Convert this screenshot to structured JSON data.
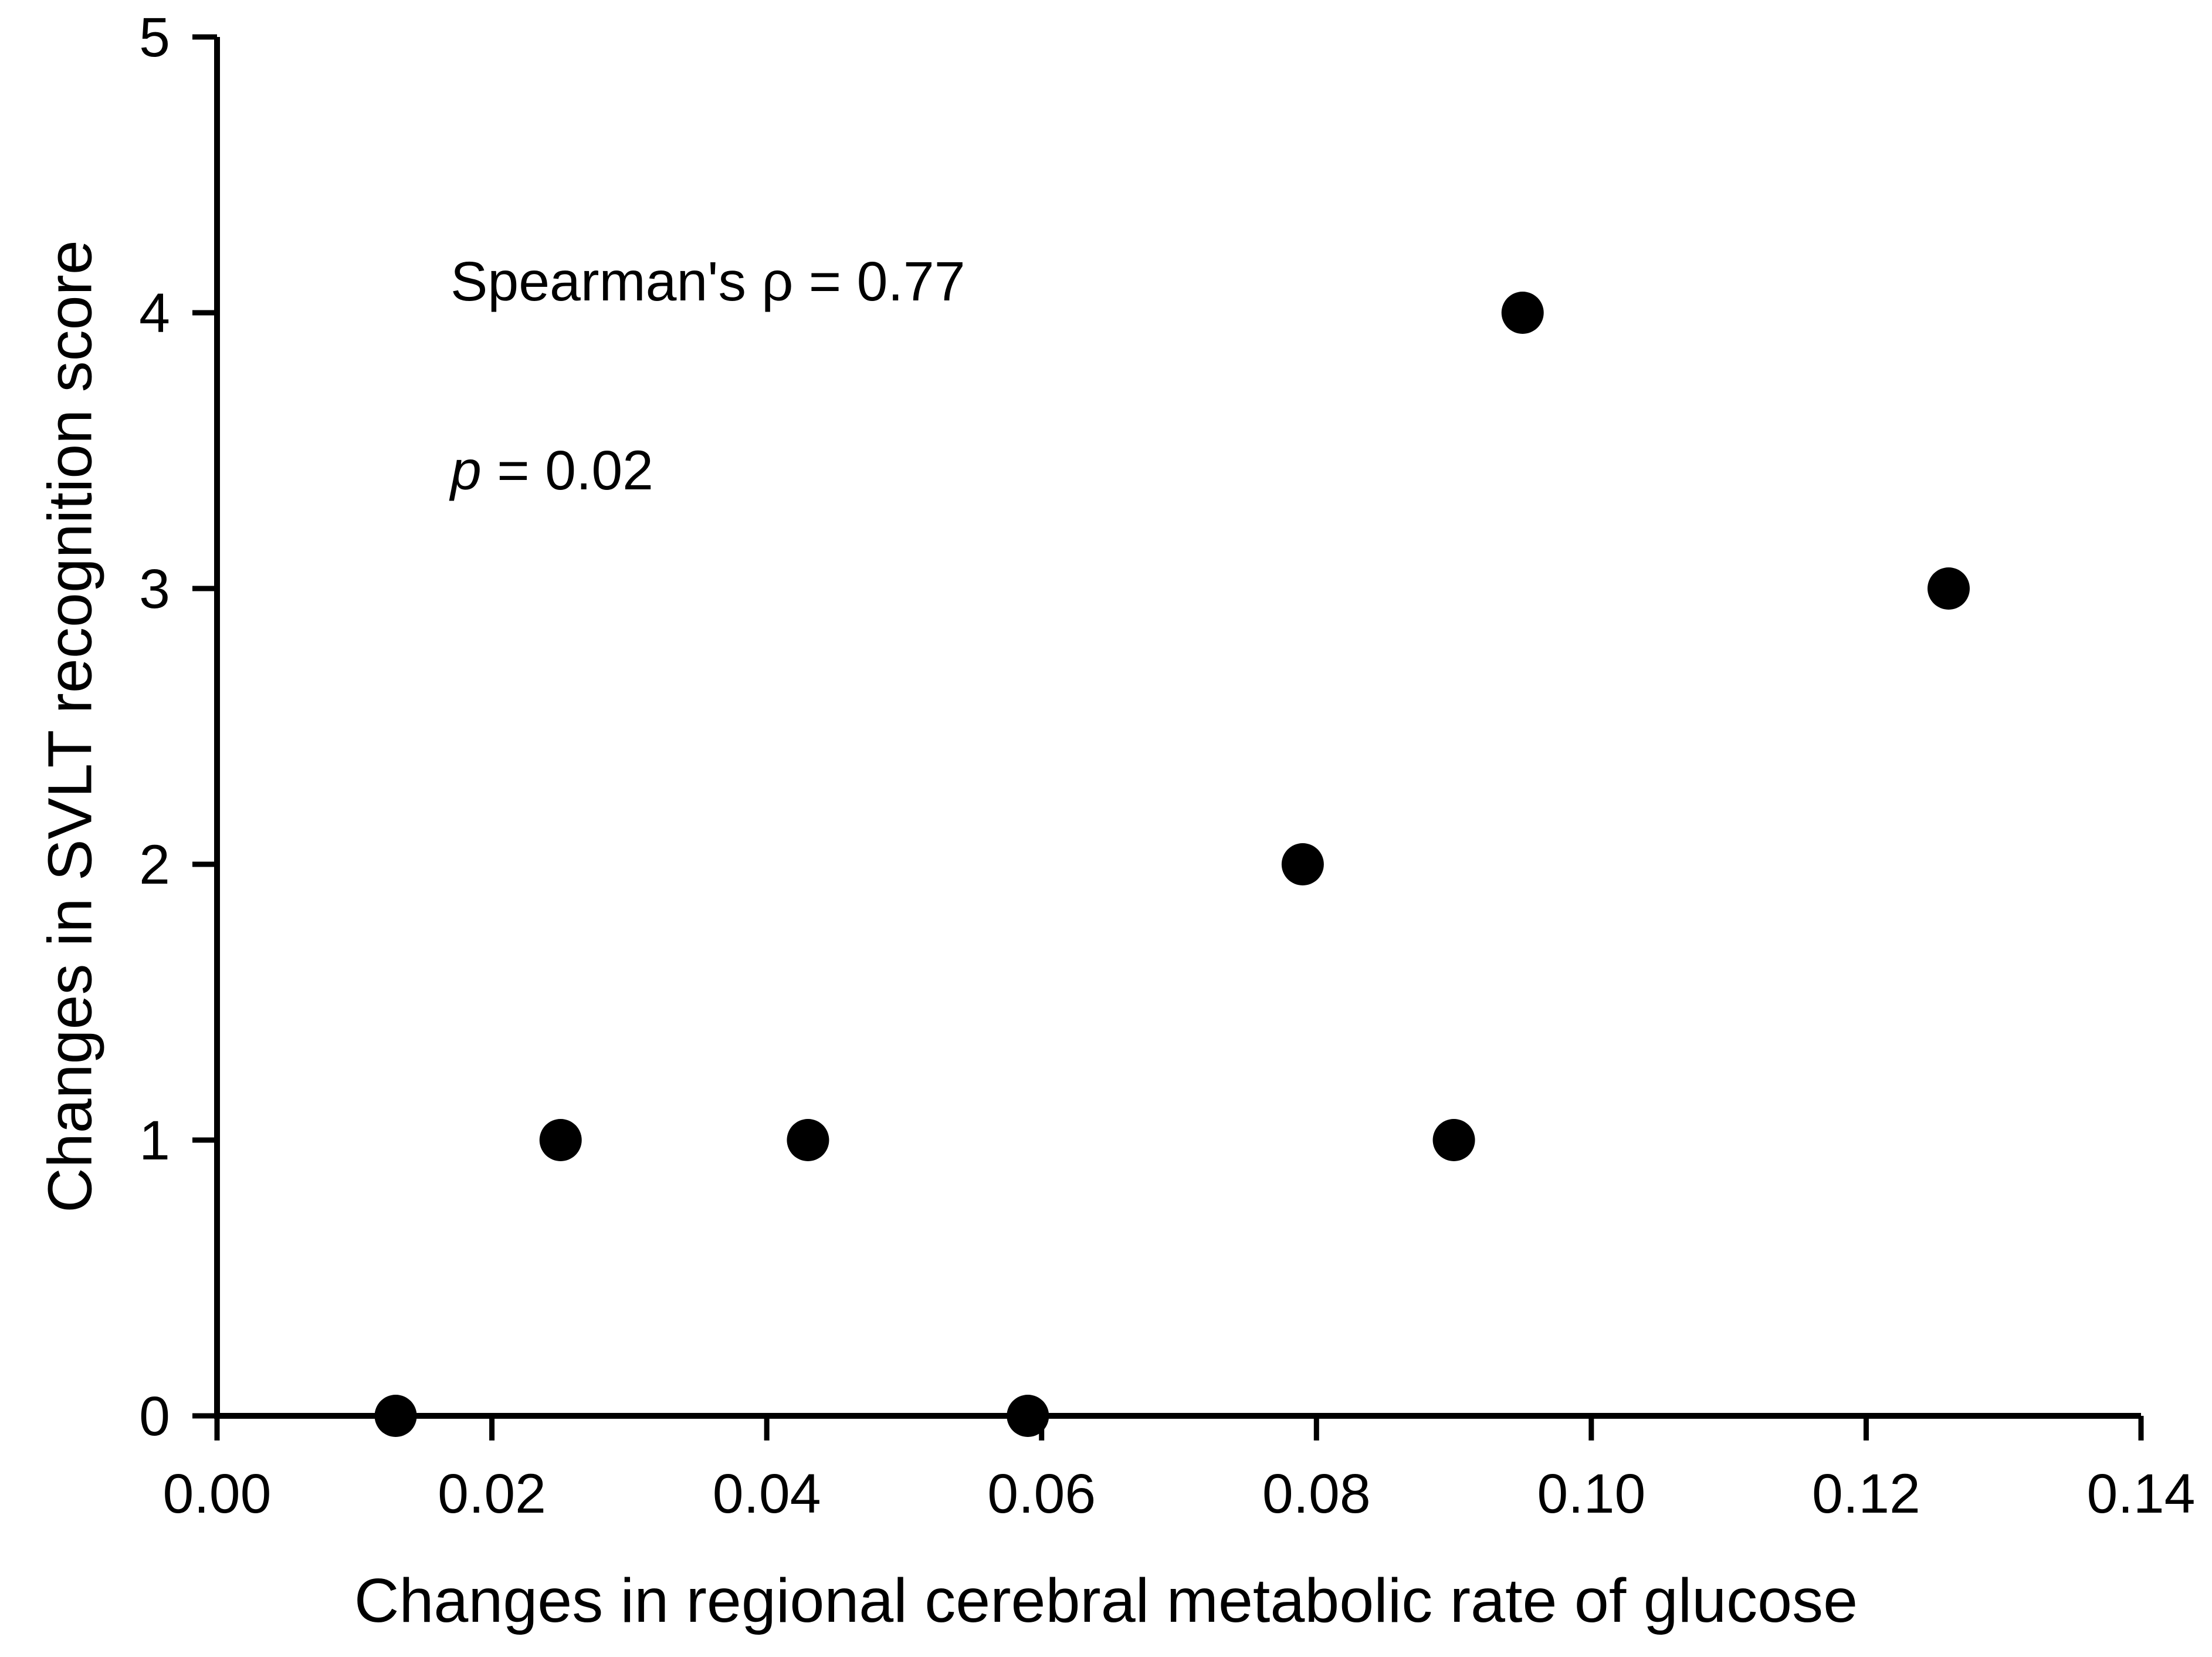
{
  "chart_data": {
    "type": "scatter",
    "title": "",
    "xlabel": "Changes in regional cerebral metabolic rate of glucose",
    "ylabel": "Changes in SVLT recognition score",
    "xlim": [
      0,
      0.14
    ],
    "ylim": [
      0,
      5
    ],
    "x_tick_labels": [
      "0.00",
      "0.02",
      "0.04",
      "0.06",
      "0.08",
      "0.10",
      "0.12",
      "0.14"
    ],
    "y_tick_labels": [
      "0",
      "1",
      "2",
      "3",
      "4",
      "5"
    ],
    "grid": false,
    "legend": false,
    "marker": "filled-circle",
    "points": [
      {
        "x": 0.013,
        "y": 0
      },
      {
        "x": 0.025,
        "y": 1
      },
      {
        "x": 0.043,
        "y": 1
      },
      {
        "x": 0.059,
        "y": 0
      },
      {
        "x": 0.079,
        "y": 2
      },
      {
        "x": 0.09,
        "y": 1
      },
      {
        "x": 0.095,
        "y": 4
      },
      {
        "x": 0.126,
        "y": 3
      }
    ],
    "annotation": {
      "line1": "Spearman's ρ = 0.77",
      "line2_var": "p",
      "line2_rest": " = 0.02"
    },
    "colors": {
      "point": "#000000",
      "axis": "#000000",
      "text": "#000000",
      "background": "#ffffff"
    }
  }
}
